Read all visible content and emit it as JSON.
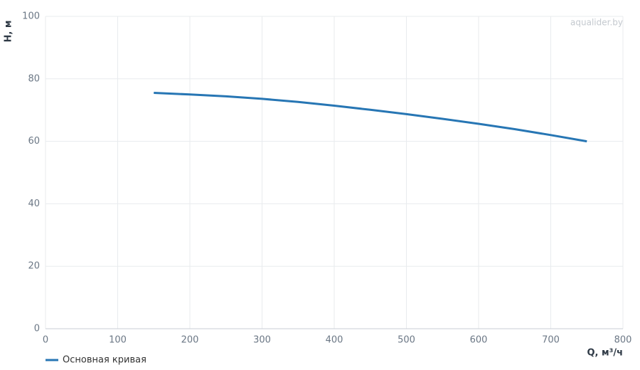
{
  "chart_data": {
    "type": "line",
    "watermark": "aqualider.by",
    "x_label": "Q, м³/ч",
    "y_label": "H, м",
    "x": [
      150,
      200,
      250,
      300,
      350,
      400,
      450,
      500,
      550,
      600,
      650,
      700,
      750
    ],
    "series": [
      {
        "name": "Основная кривая",
        "color": "#2776b4",
        "values": [
          75.5,
          75.0,
          74.4,
          73.6,
          72.6,
          71.4,
          70.1,
          68.7,
          67.2,
          65.6,
          63.9,
          62.0,
          60.0
        ]
      }
    ],
    "xlim": [
      0,
      800
    ],
    "ylim": [
      0,
      100
    ],
    "xticks": [
      0,
      100,
      200,
      300,
      400,
      500,
      600,
      700,
      800
    ],
    "yticks": [
      0,
      20,
      40,
      60,
      80,
      100
    ],
    "grid": true,
    "legend": "bottom-left"
  }
}
